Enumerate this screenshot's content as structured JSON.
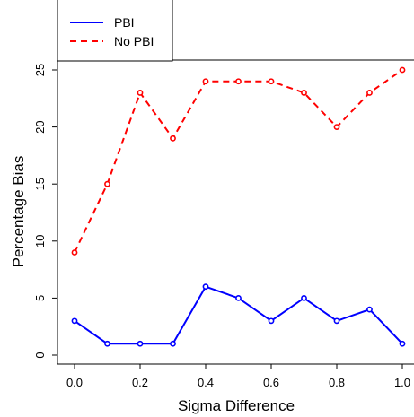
{
  "chart_data": {
    "type": "line",
    "xlabel": "Sigma Difference",
    "ylabel": "Percentage Bias",
    "xlim": [
      0.0,
      1.0
    ],
    "ylim": [
      0,
      25
    ],
    "x_ticks": [
      "0.0",
      "0.2",
      "0.4",
      "0.6",
      "0.8",
      "1.0"
    ],
    "y_ticks": [
      "0",
      "5",
      "10",
      "15",
      "20",
      "25"
    ],
    "grid": false,
    "legend_position": "top-left",
    "x": [
      0.0,
      0.1,
      0.2,
      0.3,
      0.4,
      0.5,
      0.6,
      0.7,
      0.8,
      0.9,
      1.0
    ],
    "series": [
      {
        "name": "PBI",
        "color": "#0000ff",
        "line_style": "solid",
        "values": [
          3,
          1,
          1,
          1,
          6,
          5,
          3,
          5,
          3,
          4,
          1
        ]
      },
      {
        "name": "No PBI",
        "color": "#ff0000",
        "line_style": "dashed",
        "values": [
          9,
          15,
          23,
          19,
          24,
          24,
          24,
          23,
          20,
          23,
          25
        ]
      }
    ]
  }
}
